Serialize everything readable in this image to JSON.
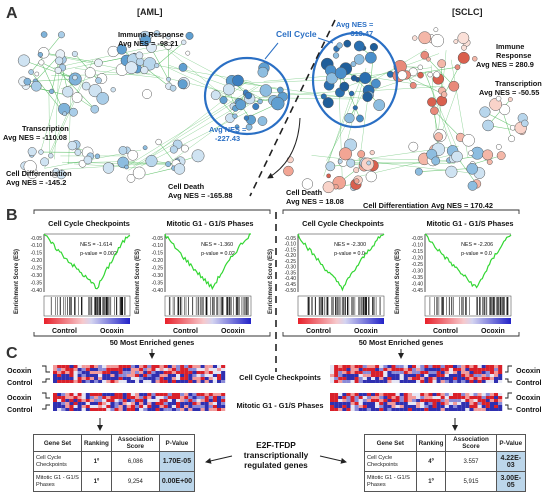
{
  "panel_letters": {
    "a": "A",
    "b": "B",
    "c": "C"
  },
  "panelA": {
    "aml_title": "[AML]",
    "sclc_title": "[SCLC]",
    "cell_cycle_label": "Cell Cycle",
    "aml": {
      "immune_1": "Immune Response",
      "immune_2": "Avg NES = -98.21",
      "transcription_1": "Transcription",
      "transcription_2": "Avg NES = -110.08",
      "diff_1": "Cell Differentiation",
      "diff_2": "Avg NES = -145.2",
      "death_1": "Cell Death",
      "death_2": "Avg NES = -165.88",
      "cc_1": "Avg NES =",
      "cc_2": "-227.43"
    },
    "sclc": {
      "cc_1": "Avg NES =",
      "cc_2": "-313.47",
      "immune_1": "Immune",
      "immune_2": "Response",
      "immune_3": "Avg NES = 280.9",
      "transcription_1": "Transcription",
      "transcription_2": "Avg NES = -50.55",
      "death_1": "Cell Death",
      "death_2": "Avg NES = 18.08",
      "diff_1": "Cell Differentiation",
      "diff_2": "Avg NES = 170.42"
    }
  },
  "panelB": {
    "ylabel": "Enrichment Score (ES)",
    "control": "Control",
    "ocoxin": "Ocoxin",
    "enriched_left": "50 Most Enriched genes",
    "enriched_right": "50 Most Enriched genes",
    "plots": [
      {
        "title": "Cell Cycle Checkpoints",
        "nes": "NES = -1.614",
        "pval": "p-value = 0.002",
        "ticks": [
          "-0.05",
          "-0.10",
          "-0.15",
          "-0.20",
          "-0.25",
          "-0.30",
          "-0.35",
          "-0.40"
        ]
      },
      {
        "title": "Mitotic G1 - G1/S Phases",
        "nes": "NES = -1.360",
        "pval": "p-value = 0.02",
        "ticks": [
          "-0.05",
          "-0.10",
          "-0.15",
          "-0.20",
          "-0.25",
          "-0.30",
          "-0.35",
          "-0.40"
        ]
      },
      {
        "title": "Cell Cycle Checkpoints",
        "nes": "NES = -2.300",
        "pval": "p-value = 0.0",
        "ticks": [
          "-0.05",
          "-0.10",
          "-0.15",
          "-0.20",
          "-0.25",
          "-0.30",
          "-0.35",
          "-0.40",
          "-0.45",
          "-0.50"
        ]
      },
      {
        "title": "Mitotic G1 - G1/S Phases",
        "nes": "NES = -2.206",
        "pval": "p-value = 0.0",
        "ticks": [
          "-0.05",
          "-0.10",
          "-0.15",
          "-0.20",
          "-0.25",
          "-0.30",
          "-0.35",
          "-0.40",
          "-0.45"
        ]
      }
    ]
  },
  "panelC": {
    "ocoxin": "Ocoxin",
    "control": "Control",
    "heatmap1_label": "Cell Cycle Checkpoints",
    "heatmap2_label": "Mitotic G1 - G1/S Phases",
    "center_1": "E2F-TFDP",
    "center_2": "transcriptionally",
    "center_3": "regulated genes",
    "table_headers": [
      "Gene Set",
      "Ranking",
      "Association Score",
      "P-Value"
    ],
    "table_left": [
      [
        "Cell Cycle Checkpoints",
        "1º",
        "6,086",
        "1.70E-05"
      ],
      [
        "Mitotic G1 - G1/S Phases",
        "1º",
        "9,254",
        "0.00E+00"
      ]
    ],
    "table_right": [
      [
        "Cell Cycle Checkpoints",
        "4º",
        "3.557",
        "4.22E-03"
      ],
      [
        "Mitotic G1 - G1/S Phases",
        "1º",
        "5,915",
        "3.00E-05"
      ]
    ]
  }
}
